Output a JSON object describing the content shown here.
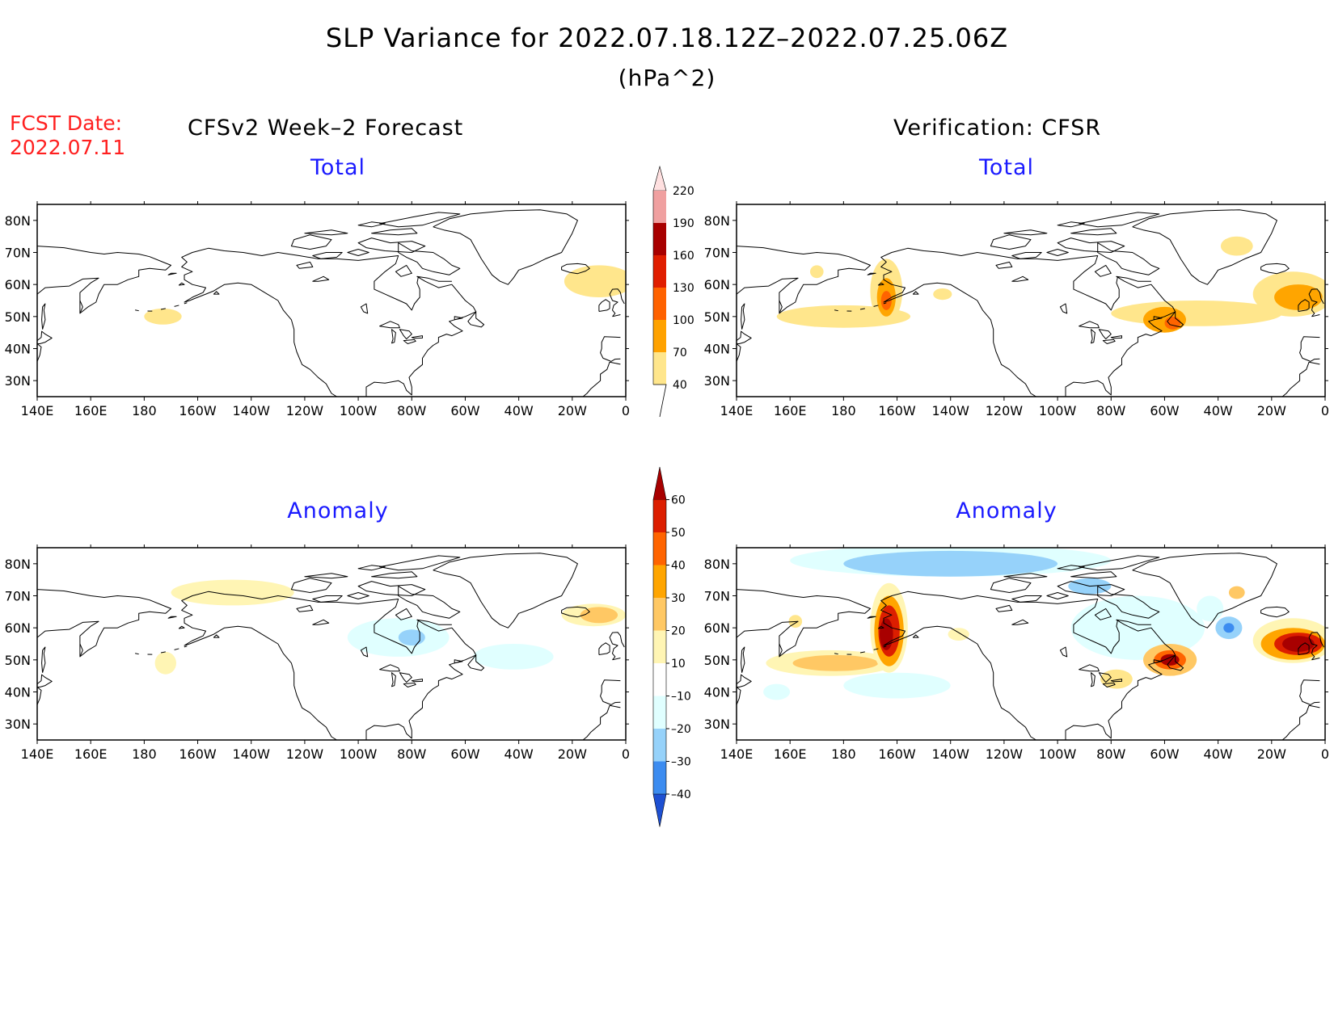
{
  "figure": {
    "title": "SLP Variance for 2022.07.18.12Z–2022.07.25.06Z",
    "units": "(hPa^2)",
    "fcst_label": "FCST Date:",
    "fcst_date": "2022.07.11",
    "left_heading": "CFSv2 Week–2 Forecast",
    "right_heading": "Verification: CFSR"
  },
  "panels": [
    {
      "id": "forecast-total",
      "title": "Total"
    },
    {
      "id": "verification-total",
      "title": "Total"
    },
    {
      "id": "forecast-anomaly",
      "title": "Anomaly"
    },
    {
      "id": "verification-anomaly",
      "title": "Anomaly"
    }
  ],
  "axes": {
    "lon_labels": [
      "140E",
      "160E",
      "180",
      "160W",
      "140W",
      "120W",
      "100W",
      "80W",
      "60W",
      "40W",
      "20W",
      "0"
    ],
    "lat_labels": [
      "80N",
      "70N",
      "60N",
      "50N",
      "40N",
      "30N"
    ]
  },
  "colorbars": {
    "total": {
      "levels": [
        "40",
        "70",
        "100",
        "130",
        "160",
        "190",
        "220"
      ],
      "colors": [
        "#ffe68c",
        "#ffa200",
        "#ff6200",
        "#e01e00",
        "#a80000",
        "#f0a0a0",
        "#ffe0e0"
      ]
    },
    "anomaly": {
      "levels": [
        "60",
        "50",
        "40",
        "30",
        "20",
        "10",
        "–10",
        "–20",
        "–30",
        "–40"
      ],
      "colors": [
        "#a80000",
        "#dc1e00",
        "#ff6400",
        "#ffa500",
        "#ffc864",
        "#fff5b4",
        "#ffffff",
        "#e0ffff",
        "#96d2fa",
        "#3c8cf0",
        "#1e50d2"
      ]
    }
  },
  "shading_colors": {
    "pos1": "#fff5b4",
    "pos2": "#ffe68c",
    "pos3": "#ffc864",
    "pos4": "#ffa500",
    "pos5": "#ff6400",
    "pos6": "#dc1e00",
    "pos7": "#a80000",
    "neg1": "#e0ffff",
    "neg2": "#96d2fa",
    "neg3": "#3c8cf0"
  },
  "map_features": [
    {
      "panel": 0,
      "shape": "ellipse",
      "lon": -10,
      "lat": 61,
      "rlon": 13,
      "rlat": 5,
      "level": "pos2"
    },
    {
      "panel": 0,
      "shape": "ellipse",
      "lon": -173,
      "lat": 50,
      "rlon": 7,
      "rlat": 2.5,
      "level": "pos2"
    },
    {
      "panel": 1,
      "shape": "ellipse",
      "lon": 180,
      "lat": 50,
      "rlon": 25,
      "rlat": 3.5,
      "level": "pos2"
    },
    {
      "panel": 1,
      "shape": "ellipse",
      "lon": -164,
      "lat": 58,
      "rlon": 6,
      "rlat": 10,
      "level": "pos2"
    },
    {
      "panel": 1,
      "shape": "ellipse",
      "lon": -164,
      "lat": 56,
      "rlon": 3.5,
      "rlat": 6,
      "level": "pos4"
    },
    {
      "panel": 1,
      "shape": "ellipse",
      "lon": -164,
      "lat": 55,
      "rlon": 2,
      "rlat": 3,
      "level": "pos5"
    },
    {
      "panel": 1,
      "shape": "ellipse",
      "lon": -48,
      "lat": 51,
      "rlon": 32,
      "rlat": 4,
      "level": "pos2"
    },
    {
      "panel": 1,
      "shape": "ellipse",
      "lon": -12,
      "lat": 57,
      "rlon": 15,
      "rlat": 7,
      "level": "pos2"
    },
    {
      "panel": 1,
      "shape": "ellipse",
      "lon": -10,
      "lat": 56,
      "rlon": 9,
      "rlat": 4,
      "level": "pos4"
    },
    {
      "panel": 1,
      "shape": "ellipse",
      "lon": -60,
      "lat": 49,
      "rlon": 8,
      "rlat": 4,
      "level": "pos4"
    },
    {
      "panel": 1,
      "shape": "ellipse",
      "lon": -57,
      "lat": 48,
      "rlon": 3,
      "rlat": 2,
      "level": "pos5"
    },
    {
      "panel": 1,
      "shape": "ellipse",
      "lon": -33,
      "lat": 72,
      "rlon": 6,
      "rlat": 3,
      "level": "pos2"
    },
    {
      "panel": 1,
      "shape": "ellipse",
      "lon": -143,
      "lat": 57,
      "rlon": 3.5,
      "rlat": 1.8,
      "level": "pos2"
    },
    {
      "panel": 1,
      "shape": "ellipse",
      "lon": 170,
      "lat": 64,
      "rlon": 2.5,
      "rlat": 2,
      "level": "pos2"
    },
    {
      "panel": 2,
      "shape": "ellipse",
      "lon": -147,
      "lat": 71,
      "rlon": 23,
      "rlat": 4,
      "level": "pos1"
    },
    {
      "panel": 2,
      "shape": "ellipse",
      "lon": -85,
      "lat": 57,
      "rlon": 19,
      "rlat": 6,
      "level": "neg1"
    },
    {
      "panel": 2,
      "shape": "ellipse",
      "lon": -80,
      "lat": 57,
      "rlon": 5,
      "rlat": 2.5,
      "level": "neg2"
    },
    {
      "panel": 2,
      "shape": "ellipse",
      "lon": -42,
      "lat": 51,
      "rlon": 15,
      "rlat": 4,
      "level": "neg1"
    },
    {
      "panel": 2,
      "shape": "ellipse",
      "lon": -12,
      "lat": 64,
      "rlon": 12,
      "rlat": 3.5,
      "level": "pos1"
    },
    {
      "panel": 2,
      "shape": "ellipse",
      "lon": -10,
      "lat": 64,
      "rlon": 7,
      "rlat": 2.5,
      "level": "pos3"
    },
    {
      "panel": 2,
      "shape": "ellipse",
      "lon": -172,
      "lat": 49,
      "rlon": 4,
      "rlat": 3.5,
      "level": "pos1"
    },
    {
      "panel": 3,
      "shape": "ellipse",
      "lon": -140,
      "lat": 81,
      "rlon": 60,
      "rlat": 5,
      "level": "neg1"
    },
    {
      "panel": 3,
      "shape": "ellipse",
      "lon": -140,
      "lat": 80,
      "rlon": 40,
      "rlat": 4,
      "level": "neg2"
    },
    {
      "panel": 3,
      "shape": "ellipse",
      "lon": -88,
      "lat": 73,
      "rlon": 8,
      "rlat": 2.5,
      "level": "neg2"
    },
    {
      "panel": 3,
      "shape": "ellipse",
      "lon": -85,
      "lat": 59,
      "rlon": 7,
      "rlat": 6,
      "level": "neg2"
    },
    {
      "panel": 3,
      "shape": "ellipse",
      "lon": -70,
      "lat": 60,
      "rlon": 25,
      "rlat": 10,
      "level": "neg1"
    },
    {
      "panel": 3,
      "shape": "ellipse",
      "lon": -160,
      "lat": 42,
      "rlon": 20,
      "rlat": 4,
      "level": "neg1"
    },
    {
      "panel": 3,
      "shape": "ellipse",
      "lon": 175,
      "lat": 49,
      "rlon": 24,
      "rlat": 4,
      "level": "pos1"
    },
    {
      "panel": 3,
      "shape": "ellipse",
      "lon": 177,
      "lat": 49,
      "rlon": 16,
      "rlat": 2.5,
      "level": "pos3"
    },
    {
      "panel": 3,
      "shape": "ellipse",
      "lon": -163,
      "lat": 60,
      "rlon": 7,
      "rlat": 14,
      "level": "pos1"
    },
    {
      "panel": 3,
      "shape": "ellipse",
      "lon": -163,
      "lat": 59,
      "rlon": 5.5,
      "rlat": 11,
      "level": "pos4"
    },
    {
      "panel": 3,
      "shape": "ellipse",
      "lon": -163,
      "lat": 59,
      "rlon": 4,
      "rlat": 8,
      "level": "pos6"
    },
    {
      "panel": 3,
      "shape": "ellipse",
      "lon": -164,
      "lat": 58,
      "rlon": 2.5,
      "rlat": 5,
      "level": "pos7"
    },
    {
      "panel": 3,
      "shape": "ellipse",
      "lon": -58,
      "lat": 50,
      "rlon": 10,
      "rlat": 5,
      "level": "pos3"
    },
    {
      "panel": 3,
      "shape": "ellipse",
      "lon": -58,
      "lat": 50,
      "rlon": 6,
      "rlat": 3,
      "level": "pos5"
    },
    {
      "panel": 3,
      "shape": "ellipse",
      "lon": -58,
      "lat": 50,
      "rlon": 3.5,
      "rlat": 1.8,
      "level": "pos7"
    },
    {
      "panel": 3,
      "shape": "ellipse",
      "lon": -78,
      "lat": 44,
      "rlon": 6,
      "rlat": 3,
      "level": "pos2"
    },
    {
      "panel": 3,
      "shape": "ellipse",
      "lon": -12,
      "lat": 56,
      "rlon": 15,
      "rlat": 7,
      "level": "pos1"
    },
    {
      "panel": 3,
      "shape": "ellipse",
      "lon": -12,
      "lat": 55,
      "rlon": 12,
      "rlat": 5,
      "level": "pos4"
    },
    {
      "panel": 3,
      "shape": "ellipse",
      "lon": -10,
      "lat": 55,
      "rlon": 9,
      "rlat": 3.5,
      "level": "pos6"
    },
    {
      "panel": 3,
      "shape": "ellipse",
      "lon": -10,
      "lat": 55,
      "rlon": 6,
      "rlat": 2.5,
      "level": "pos7"
    },
    {
      "panel": 3,
      "shape": "ellipse",
      "lon": -36,
      "lat": 60,
      "rlon": 5,
      "rlat": 3.5,
      "level": "neg2"
    },
    {
      "panel": 3,
      "shape": "ellipse",
      "lon": -36,
      "lat": 60,
      "rlon": 2,
      "rlat": 1.5,
      "level": "neg3"
    },
    {
      "panel": 3,
      "shape": "ellipse",
      "lon": -33,
      "lat": 71,
      "rlon": 3,
      "rlat": 2,
      "level": "pos3"
    },
    {
      "panel": 3,
      "shape": "ellipse",
      "lon": -43,
      "lat": 66,
      "rlon": 5,
      "rlat": 4,
      "level": "neg1"
    },
    {
      "panel": 3,
      "shape": "ellipse",
      "lon": 155,
      "lat": 40,
      "rlon": 5,
      "rlat": 2.5,
      "level": "neg1"
    },
    {
      "panel": 3,
      "shape": "ellipse",
      "lon": -137,
      "lat": 58,
      "rlon": 4,
      "rlat": 2,
      "level": "pos1"
    },
    {
      "panel": 3,
      "shape": "ellipse",
      "lon": 162,
      "lat": 62,
      "rlon": 2.5,
      "rlat": 2,
      "level": "pos2"
    }
  ]
}
